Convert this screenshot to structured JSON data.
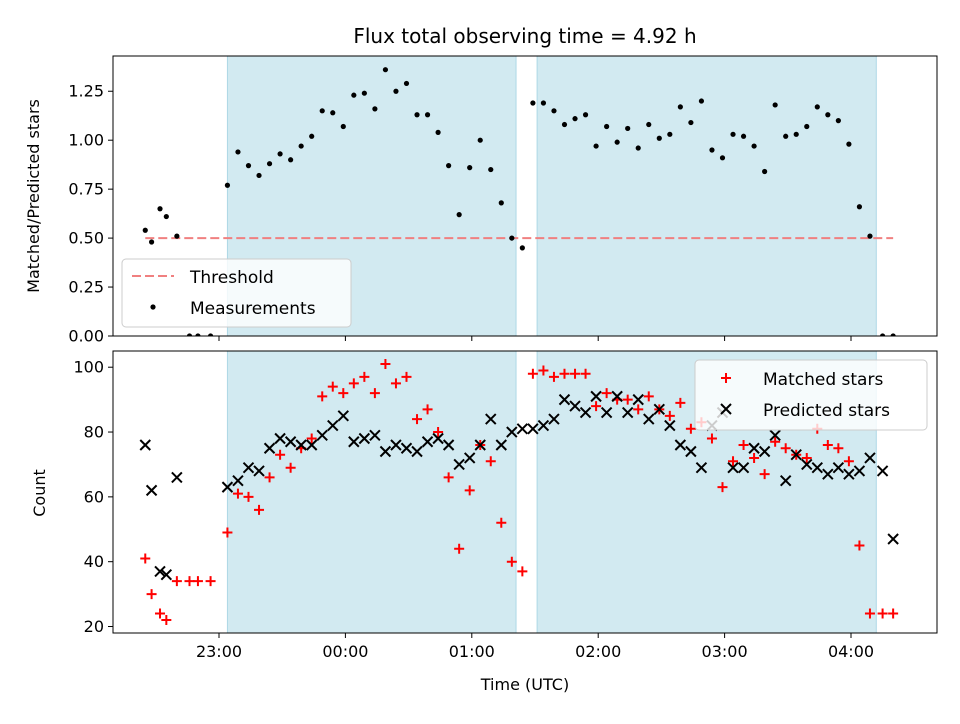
{
  "chart_data": {
    "title": "Flux total observing time = 4.92 h",
    "xlabel": "Time (UTC)",
    "x_ticks": [
      "23:00",
      "00:00",
      "01:00",
      "02:00",
      "03:00",
      "04:00"
    ],
    "shaded_intervals": [
      [
        "23:04",
        "01:21"
      ],
      [
        "01:31",
        "04:12"
      ]
    ],
    "shade_color": "#add8e6",
    "panels": [
      {
        "type": "scatter",
        "ylabel": "Matched/Predicted stars",
        "ylim": [
          0,
          1.43
        ],
        "yticks": [
          "0.00",
          "0.25",
          "0.50",
          "0.75",
          "1.00",
          "1.25"
        ],
        "threshold": {
          "name": "Threshold",
          "value": 0.5,
          "x_start": "22:25",
          "x_end": "04:20",
          "color": "#f08080"
        },
        "series": [
          {
            "name": "Measurements",
            "color": "#000000",
            "marker": "dot",
            "points": [
              [
                "22:25",
                0.54
              ],
              [
                "22:28",
                0.48
              ],
              [
                "22:32",
                0.65
              ],
              [
                "22:35",
                0.61
              ],
              [
                "22:40",
                0.51
              ],
              [
                "22:46",
                0.0
              ],
              [
                "22:50",
                0.0
              ],
              [
                "22:56",
                0.0
              ],
              [
                "23:04",
                0.77
              ],
              [
                "23:09",
                0.94
              ],
              [
                "23:14",
                0.87
              ],
              [
                "23:19",
                0.82
              ],
              [
                "23:24",
                0.88
              ],
              [
                "23:29",
                0.93
              ],
              [
                "23:34",
                0.9
              ],
              [
                "23:39",
                0.97
              ],
              [
                "23:44",
                1.02
              ],
              [
                "23:49",
                1.15
              ],
              [
                "23:54",
                1.14
              ],
              [
                "23:59",
                1.07
              ],
              [
                "00:04",
                1.23
              ],
              [
                "00:09",
                1.24
              ],
              [
                "00:14",
                1.16
              ],
              [
                "00:19",
                1.36
              ],
              [
                "00:24",
                1.25
              ],
              [
                "00:29",
                1.29
              ],
              [
                "00:34",
                1.13
              ],
              [
                "00:39",
                1.13
              ],
              [
                "00:44",
                1.04
              ],
              [
                "00:49",
                0.87
              ],
              [
                "00:54",
                0.62
              ],
              [
                "00:59",
                0.86
              ],
              [
                "01:04",
                1.0
              ],
              [
                "01:09",
                0.85
              ],
              [
                "01:14",
                0.68
              ],
              [
                "01:19",
                0.5
              ],
              [
                "01:24",
                0.45
              ],
              [
                "01:29",
                1.19
              ],
              [
                "01:34",
                1.19
              ],
              [
                "01:39",
                1.15
              ],
              [
                "01:44",
                1.08
              ],
              [
                "01:49",
                1.11
              ],
              [
                "01:54",
                1.13
              ],
              [
                "01:59",
                0.97
              ],
              [
                "02:04",
                1.07
              ],
              [
                "02:09",
                0.99
              ],
              [
                "02:14",
                1.06
              ],
              [
                "02:19",
                0.96
              ],
              [
                "02:24",
                1.08
              ],
              [
                "02:29",
                1.01
              ],
              [
                "02:34",
                1.03
              ],
              [
                "02:39",
                1.17
              ],
              [
                "02:44",
                1.09
              ],
              [
                "02:49",
                1.2
              ],
              [
                "02:54",
                0.95
              ],
              [
                "02:59",
                0.91
              ],
              [
                "03:04",
                1.03
              ],
              [
                "03:09",
                1.02
              ],
              [
                "03:14",
                0.97
              ],
              [
                "03:19",
                0.84
              ],
              [
                "03:24",
                1.18
              ],
              [
                "03:29",
                1.02
              ],
              [
                "03:34",
                1.03
              ],
              [
                "03:39",
                1.07
              ],
              [
                "03:44",
                1.17
              ],
              [
                "03:49",
                1.13
              ],
              [
                "03:54",
                1.1
              ],
              [
                "03:59",
                0.98
              ],
              [
                "04:04",
                0.66
              ],
              [
                "04:09",
                0.51
              ],
              [
                "04:15",
                0.0
              ],
              [
                "04:20",
                0.0
              ]
            ]
          }
        ],
        "legend": {
          "position": "lower-left",
          "entries": [
            "Threshold",
            "Measurements"
          ]
        }
      },
      {
        "type": "scatter",
        "ylabel": "Count",
        "ylim": [
          18,
          105
        ],
        "yticks": [
          "20",
          "40",
          "60",
          "80",
          "100"
        ],
        "series": [
          {
            "name": "Matched stars",
            "color": "#ff0000",
            "marker": "plus",
            "points": [
              [
                "22:25",
                41
              ],
              [
                "22:28",
                30
              ],
              [
                "22:32",
                24
              ],
              [
                "22:35",
                22
              ],
              [
                "22:40",
                34
              ],
              [
                "22:46",
                34
              ],
              [
                "22:50",
                34
              ],
              [
                "22:56",
                34
              ],
              [
                "23:04",
                49
              ],
              [
                "23:09",
                61
              ],
              [
                "23:14",
                60
              ],
              [
                "23:19",
                56
              ],
              [
                "23:24",
                66
              ],
              [
                "23:29",
                73
              ],
              [
                "23:34",
                69
              ],
              [
                "23:39",
                75
              ],
              [
                "23:44",
                78
              ],
              [
                "23:49",
                91
              ],
              [
                "23:54",
                94
              ],
              [
                "23:59",
                92
              ],
              [
                "00:04",
                95
              ],
              [
                "00:09",
                97
              ],
              [
                "00:14",
                92
              ],
              [
                "00:19",
                101
              ],
              [
                "00:24",
                95
              ],
              [
                "00:29",
                97
              ],
              [
                "00:34",
                84
              ],
              [
                "00:39",
                87
              ],
              [
                "00:44",
                80
              ],
              [
                "00:49",
                66
              ],
              [
                "00:54",
                44
              ],
              [
                "00:59",
                62
              ],
              [
                "01:04",
                76
              ],
              [
                "01:09",
                71
              ],
              [
                "01:14",
                52
              ],
              [
                "01:19",
                40
              ],
              [
                "01:24",
                37
              ],
              [
                "01:29",
                98
              ],
              [
                "01:34",
                99
              ],
              [
                "01:39",
                97
              ],
              [
                "01:44",
                98
              ],
              [
                "01:49",
                98
              ],
              [
                "01:54",
                98
              ],
              [
                "01:59",
                88
              ],
              [
                "02:04",
                92
              ],
              [
                "02:09",
                90
              ],
              [
                "02:14",
                90
              ],
              [
                "02:19",
                87
              ],
              [
                "02:24",
                91
              ],
              [
                "02:29",
                87
              ],
              [
                "02:34",
                85
              ],
              [
                "02:39",
                89
              ],
              [
                "02:44",
                81
              ],
              [
                "02:49",
                83
              ],
              [
                "02:54",
                78
              ],
              [
                "02:59",
                63
              ],
              [
                "03:04",
                71
              ],
              [
                "03:09",
                76
              ],
              [
                "03:14",
                72
              ],
              [
                "03:19",
                67
              ],
              [
                "03:24",
                77
              ],
              [
                "03:29",
                75
              ],
              [
                "03:34",
                73
              ],
              [
                "03:39",
                72
              ],
              [
                "03:44",
                81
              ],
              [
                "03:49",
                76
              ],
              [
                "03:54",
                75
              ],
              [
                "03:59",
                71
              ],
              [
                "04:04",
                45
              ],
              [
                "04:09",
                24
              ],
              [
                "04:15",
                24
              ],
              [
                "04:20",
                24
              ]
            ]
          },
          {
            "name": "Predicted stars",
            "color": "#000000",
            "marker": "x",
            "points": [
              [
                "22:25",
                76
              ],
              [
                "22:28",
                62
              ],
              [
                "22:32",
                37
              ],
              [
                "22:35",
                36
              ],
              [
                "22:40",
                66
              ],
              [
                "23:04",
                63
              ],
              [
                "23:09",
                65
              ],
              [
                "23:14",
                69
              ],
              [
                "23:19",
                68
              ],
              [
                "23:24",
                75
              ],
              [
                "23:29",
                78
              ],
              [
                "23:34",
                77
              ],
              [
                "23:39",
                76
              ],
              [
                "23:44",
                76
              ],
              [
                "23:49",
                79
              ],
              [
                "23:54",
                82
              ],
              [
                "23:59",
                85
              ],
              [
                "00:04",
                77
              ],
              [
                "00:09",
                78
              ],
              [
                "00:14",
                79
              ],
              [
                "00:19",
                74
              ],
              [
                "00:24",
                76
              ],
              [
                "00:29",
                75
              ],
              [
                "00:34",
                74
              ],
              [
                "00:39",
                77
              ],
              [
                "00:44",
                78
              ],
              [
                "00:49",
                76
              ],
              [
                "00:54",
                70
              ],
              [
                "00:59",
                72
              ],
              [
                "01:04",
                76
              ],
              [
                "01:09",
                84
              ],
              [
                "01:14",
                76
              ],
              [
                "01:19",
                80
              ],
              [
                "01:24",
                81
              ],
              [
                "01:29",
                81
              ],
              [
                "01:34",
                82
              ],
              [
                "01:39",
                84
              ],
              [
                "01:44",
                90
              ],
              [
                "01:49",
                88
              ],
              [
                "01:54",
                86
              ],
              [
                "01:59",
                91
              ],
              [
                "02:04",
                86
              ],
              [
                "02:09",
                91
              ],
              [
                "02:14",
                86
              ],
              [
                "02:19",
                90
              ],
              [
                "02:24",
                84
              ],
              [
                "02:29",
                87
              ],
              [
                "02:34",
                82
              ],
              [
                "02:39",
                76
              ],
              [
                "02:44",
                74
              ],
              [
                "02:49",
                69
              ],
              [
                "02:54",
                82
              ],
              [
                "02:59",
                86
              ],
              [
                "03:04",
                69
              ],
              [
                "03:09",
                69
              ],
              [
                "03:14",
                75
              ],
              [
                "03:19",
                74
              ],
              [
                "03:24",
                79
              ],
              [
                "03:29",
                65
              ],
              [
                "03:34",
                73
              ],
              [
                "03:39",
                70
              ],
              [
                "03:44",
                69
              ],
              [
                "03:49",
                67
              ],
              [
                "03:54",
                69
              ],
              [
                "03:59",
                67
              ],
              [
                "04:04",
                68
              ],
              [
                "04:09",
                72
              ],
              [
                "04:15",
                68
              ],
              [
                "04:20",
                47
              ]
            ]
          }
        ],
        "legend": {
          "position": "upper-right",
          "entries": [
            "Matched stars",
            "Predicted stars"
          ]
        }
      }
    ]
  }
}
